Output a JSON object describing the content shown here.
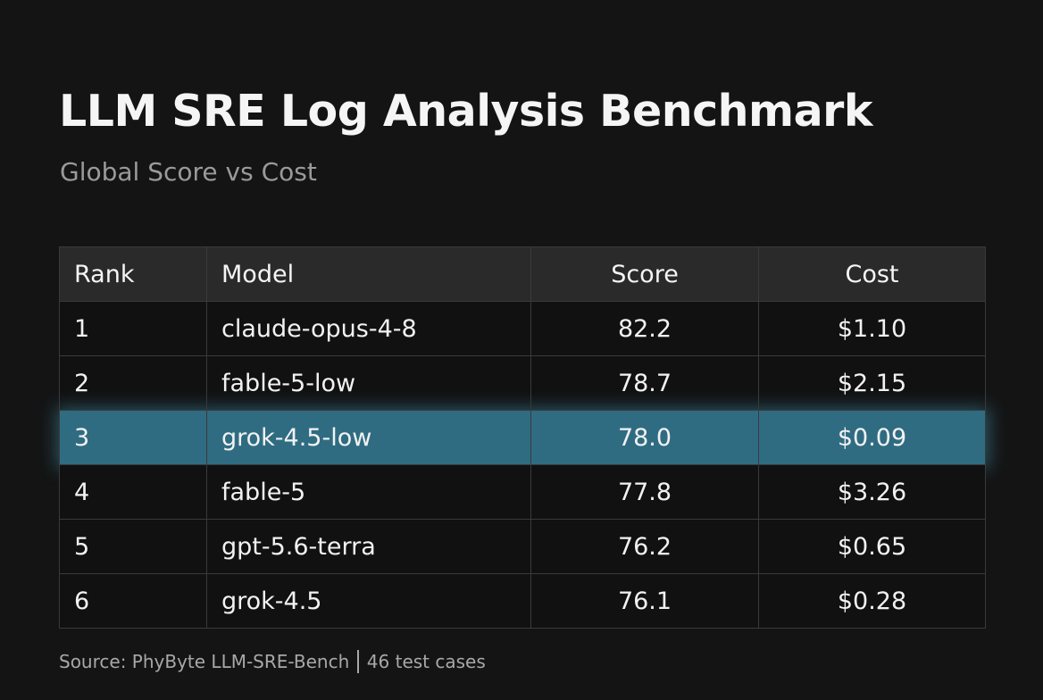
{
  "header": {
    "title": "LLM SRE Log Analysis Benchmark",
    "subtitle": "Global Score vs Cost"
  },
  "table": {
    "columns": [
      "Rank",
      "Model",
      "Score",
      "Cost"
    ],
    "rows": [
      [
        "1",
        "claude-opus-4-8",
        "82.2",
        "$1.10"
      ],
      [
        "2",
        "fable-5-low",
        "78.7",
        "$2.15"
      ],
      [
        "3",
        "grok-4.5-low",
        "78.0",
        "$0.09"
      ],
      [
        "4",
        "fable-5",
        "77.8",
        "$3.26"
      ],
      [
        "5",
        "gpt-5.6-terra",
        "76.2",
        "$0.65"
      ],
      [
        "6",
        "grok-4.5",
        "76.1",
        "$0.28"
      ]
    ],
    "highlight_row": 2
  },
  "footer": {
    "source": "Source: PhyByte LLM-SRE-Bench",
    "cases": "46 test cases"
  }
}
